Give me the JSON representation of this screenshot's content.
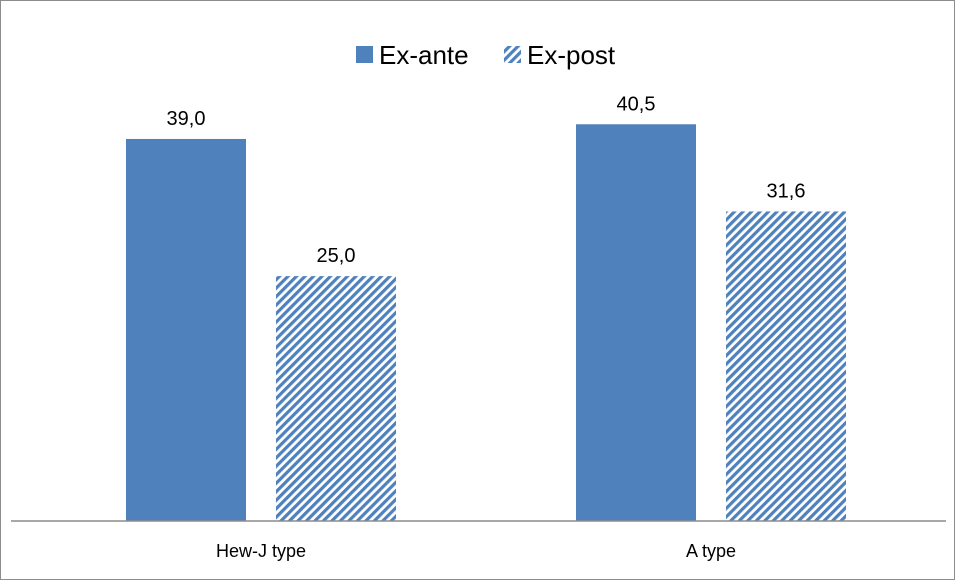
{
  "chart_data": {
    "type": "bar",
    "title": "",
    "xlabel": "",
    "ylabel": "",
    "categories": [
      "Hew-J type",
      "A type"
    ],
    "series": [
      {
        "name": "Ex-ante",
        "values": [
          39.0,
          40.5
        ],
        "value_labels": [
          "39,0",
          "40,5"
        ],
        "color": "#4f81bd",
        "fill": "solid"
      },
      {
        "name": "Ex-post",
        "values": [
          25.0,
          31.6
        ],
        "value_labels": [
          "25,0",
          "31,6"
        ],
        "color": "#4f81bd",
        "fill": "diagonal-hatch"
      }
    ],
    "ylim": [
      0,
      49
    ],
    "grid": false,
    "legend_position": "top-center"
  }
}
